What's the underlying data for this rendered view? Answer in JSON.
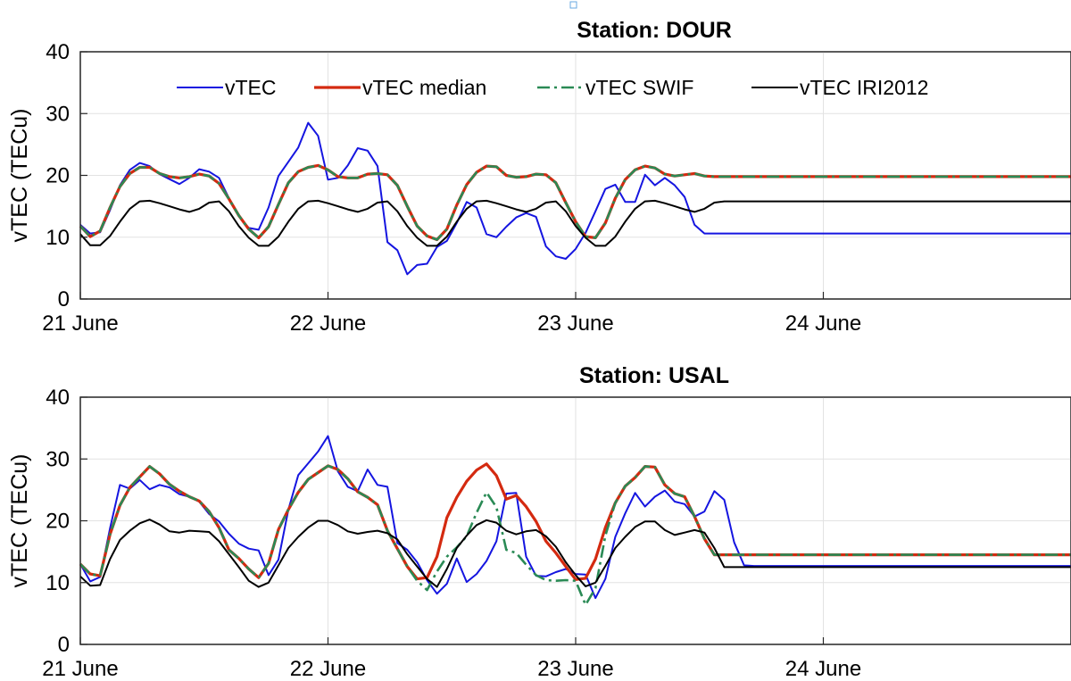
{
  "chart_data": [
    {
      "type": "line",
      "title": "Station: DOUR",
      "ylabel": "vTEC (TECu)",
      "xlabel": "",
      "xlim": [
        0,
        4
      ],
      "ylim": [
        0,
        40
      ],
      "yticks": [
        0,
        10,
        20,
        30,
        40
      ],
      "xticks": [
        0,
        1,
        2,
        3
      ],
      "xticklabels": [
        "21 June",
        "22 June",
        "23 June",
        "24 June"
      ],
      "grid": true,
      "legend": "top, horizontal",
      "x": [
        0,
        0.04,
        0.08,
        0.12,
        0.16,
        0.2,
        0.24,
        0.28,
        0.32,
        0.36,
        0.4,
        0.44,
        0.48,
        0.52,
        0.56,
        0.6,
        0.64,
        0.68,
        0.72,
        0.76,
        0.8,
        0.84,
        0.88,
        0.92,
        0.96,
        1,
        1.04,
        1.08,
        1.12,
        1.16,
        1.2,
        1.24,
        1.28,
        1.32,
        1.36,
        1.4,
        1.44,
        1.48,
        1.52,
        1.56,
        1.6,
        1.64,
        1.68,
        1.72,
        1.76,
        1.8,
        1.84,
        1.88,
        1.92,
        1.96,
        2,
        2.04,
        2.08,
        2.12,
        2.16,
        2.2,
        2.24,
        2.28,
        2.32,
        2.36,
        2.4,
        2.44,
        2.48,
        2.52,
        2.56,
        2.6,
        2.64,
        2.68,
        2.72,
        2.76,
        2.8,
        2.84,
        2.88,
        2.92,
        2.96,
        3,
        3.04,
        3.08,
        3.12,
        3.16,
        3.2,
        3.24,
        3.28,
        3.32,
        3.36,
        3.4,
        3.44,
        3.48,
        3.52,
        3.56,
        3.6,
        3.64,
        3.68,
        3.72,
        3.76,
        3.8,
        3.84,
        3.88,
        3.92,
        3.96,
        4
      ],
      "series": [
        {
          "name": "vTEC",
          "color": "#1515e0",
          "dash": "solid",
          "width": 2,
          "values": [
            12,
            10.6,
            10.8,
            14.4,
            18.4,
            20.9,
            22,
            21.5,
            20.2,
            19.4,
            18.6,
            19.6,
            21,
            20.6,
            19.6,
            16.3,
            13.4,
            11.5,
            11.2,
            14.8,
            19.9,
            22.2,
            24.5,
            28.5,
            26.4,
            19.3,
            19.6,
            21.6,
            24.4,
            24,
            21.5,
            9.2,
            7.9,
            4,
            5.5,
            5.7,
            8.4,
            9.4,
            12.3,
            15.7,
            14.8,
            10.5,
            10,
            11.7,
            13.2,
            13.9,
            13.3,
            8.5,
            6.9,
            6.5,
            8.1,
            10.7,
            14.2,
            17.8,
            18.5,
            15.7,
            15.7,
            20.1,
            18.4,
            19.6,
            18.4,
            16.5,
            12,
            10.6,
            10.6,
            10.6,
            10.6,
            10.6,
            10.6,
            10.6,
            10.6,
            10.6,
            10.6,
            10.6,
            10.6,
            10.6,
            10.6,
            10.6,
            10.6,
            10.6,
            10.6,
            10.6,
            10.6,
            10.6,
            10.6,
            10.6,
            10.6,
            10.6,
            10.6,
            10.6,
            10.6,
            10.6,
            10.6,
            10.6,
            10.6,
            10.6,
            10.6,
            10.6,
            10.6,
            10.6,
            10.6
          ]
        },
        {
          "name": "vTEC median",
          "color": "#d42a10",
          "dash": "solid",
          "width": 3.2,
          "values": [
            11.8,
            10.1,
            11,
            14.8,
            18.2,
            20.3,
            21.3,
            21.3,
            20.3,
            19.8,
            19.6,
            19.8,
            20.2,
            19.9,
            18.7,
            16.2,
            13.5,
            11.3,
            9.9,
            11.7,
            15.3,
            18.8,
            20.6,
            21.3,
            21.6,
            20.9,
            19.8,
            19.6,
            19.6,
            20.2,
            20.3,
            20.1,
            18.4,
            15,
            11.8,
            10.2,
            9.6,
            11.3,
            15.2,
            18.5,
            20.5,
            21.5,
            21.4,
            20,
            19.7,
            19.8,
            20.2,
            20.1,
            18.8,
            15.6,
            12.5,
            10.1,
            9.9,
            12.3,
            16.3,
            19.3,
            20.9,
            21.5,
            21.2,
            20.2,
            19.9,
            20.1,
            20.3,
            19.9,
            19.8,
            19.8,
            19.8,
            19.8,
            19.8,
            19.8,
            19.8,
            19.8,
            19.8,
            19.8,
            19.8,
            19.8,
            19.8,
            19.8,
            19.8,
            19.8,
            19.8,
            19.8,
            19.8,
            19.8,
            19.8,
            19.8,
            19.8,
            19.8,
            19.8,
            19.8,
            19.8,
            19.8,
            19.8,
            19.8,
            19.8,
            19.8,
            19.8,
            19.8,
            19.8,
            19.8,
            19.8
          ]
        },
        {
          "name": "vTEC SWIF",
          "color": "#2a8a55",
          "dash": "dashdot",
          "width": 2.6,
          "values": [
            11.8,
            10.1,
            11,
            14.8,
            18.2,
            20.3,
            21.3,
            21.3,
            20.3,
            19.8,
            19.6,
            19.8,
            20.2,
            19.9,
            18.7,
            16.2,
            13.5,
            11.3,
            9.9,
            11.7,
            15.3,
            18.8,
            20.6,
            21.3,
            21.6,
            20.9,
            19.8,
            19.6,
            19.6,
            20.2,
            20.3,
            20.1,
            18.4,
            15,
            11.8,
            10.2,
            9.6,
            11.3,
            15.2,
            18.5,
            20.5,
            21.5,
            21.4,
            20,
            19.7,
            19.8,
            20.2,
            20.1,
            18.8,
            15.6,
            12.5,
            10.1,
            9.9,
            12.3,
            16.3,
            19.3,
            20.9,
            21.5,
            21.2,
            20.2,
            19.9,
            20.1,
            20.3,
            19.9,
            19.8,
            19.8,
            19.8,
            19.8,
            19.8,
            19.8,
            19.8,
            19.8,
            19.8,
            19.8,
            19.8,
            19.8,
            19.8,
            19.8,
            19.8,
            19.8,
            19.8,
            19.8,
            19.8,
            19.8,
            19.8,
            19.8,
            19.8,
            19.8,
            19.8,
            19.8,
            19.8,
            19.8,
            19.8,
            19.8,
            19.8,
            19.8,
            19.8,
            19.8,
            19.8,
            19.8,
            19.8
          ]
        },
        {
          "name": "vTEC IRI2012",
          "color": "#000000",
          "dash": "solid",
          "width": 2,
          "values": [
            10.5,
            8.7,
            8.7,
            10.2,
            12.5,
            14.6,
            15.8,
            15.9,
            15.5,
            15,
            14.5,
            14.1,
            14.6,
            15.6,
            15.8,
            14.2,
            11.8,
            9.9,
            8.6,
            8.6,
            10.1,
            12.5,
            14.6,
            15.8,
            15.9,
            15.5,
            15,
            14.5,
            14.1,
            14.6,
            15.6,
            15.8,
            14.2,
            11.8,
            9.9,
            8.6,
            8.6,
            10.1,
            12.5,
            14.6,
            15.8,
            15.9,
            15.5,
            15,
            14.5,
            14.1,
            14.6,
            15.6,
            15.8,
            14.2,
            11.8,
            9.9,
            8.6,
            8.6,
            10.1,
            12.5,
            14.6,
            15.8,
            15.9,
            15.5,
            15,
            14.5,
            14.1,
            14.6,
            15.6,
            15.8,
            15.8,
            15.8,
            15.8,
            15.8,
            15.8,
            15.8,
            15.8,
            15.8,
            15.8,
            15.8,
            15.8,
            15.8,
            15.8,
            15.8,
            15.8,
            15.8,
            15.8,
            15.8,
            15.8,
            15.8,
            15.8,
            15.8,
            15.8,
            15.8,
            15.8,
            15.8,
            15.8,
            15.8,
            15.8,
            15.8,
            15.8,
            15.8,
            15.8,
            15.8,
            15.8
          ]
        }
      ]
    },
    {
      "type": "line",
      "title": "Station: USAL",
      "ylabel": "vTEC (TECu)",
      "xlabel": "",
      "xlim": [
        0,
        4
      ],
      "ylim": [
        0,
        40
      ],
      "yticks": [
        0,
        10,
        20,
        30,
        40
      ],
      "xticks": [
        0,
        1,
        2,
        3
      ],
      "xticklabels": [
        "21 June",
        "22 June",
        "23 June",
        "24 June"
      ],
      "grid": true,
      "x": [
        0,
        0.04,
        0.08,
        0.12,
        0.16,
        0.2,
        0.24,
        0.28,
        0.32,
        0.36,
        0.4,
        0.44,
        0.48,
        0.52,
        0.56,
        0.6,
        0.64,
        0.68,
        0.72,
        0.76,
        0.8,
        0.84,
        0.88,
        0.92,
        0.96,
        1,
        1.04,
        1.08,
        1.12,
        1.16,
        1.2,
        1.24,
        1.28,
        1.32,
        1.36,
        1.4,
        1.44,
        1.48,
        1.52,
        1.56,
        1.6,
        1.64,
        1.68,
        1.72,
        1.76,
        1.8,
        1.84,
        1.88,
        1.92,
        1.96,
        2,
        2.04,
        2.08,
        2.12,
        2.16,
        2.2,
        2.24,
        2.28,
        2.32,
        2.36,
        2.4,
        2.44,
        2.48,
        2.52,
        2.56,
        2.6,
        2.64,
        2.68,
        2.72,
        2.76,
        2.8,
        2.84,
        2.88,
        2.92,
        2.96,
        3,
        3.04,
        3.08,
        3.12,
        3.16,
        3.2,
        3.24,
        3.28,
        3.32,
        3.36,
        3.4,
        3.44,
        3.48,
        3.52,
        3.56,
        3.6,
        3.64,
        3.68,
        3.72,
        3.76,
        3.8,
        3.84,
        3.88,
        3.92,
        3.96,
        4
      ],
      "series": [
        {
          "name": "vTEC",
          "color": "#1515e0",
          "dash": "solid",
          "width": 2,
          "values": [
            13,
            10.2,
            10.9,
            18.8,
            25.8,
            25.2,
            26.6,
            25.1,
            25.8,
            25.4,
            24.3,
            23.9,
            23.1,
            21.1,
            19.9,
            17.9,
            16.3,
            15.5,
            15.2,
            11.2,
            13.7,
            21.8,
            27.4,
            29.3,
            31.2,
            33.7,
            28,
            25.5,
            24.8,
            28.3,
            25.8,
            25.5,
            16.4,
            15.3,
            13.3,
            10.4,
            8.2,
            9.8,
            13.9,
            10.1,
            11.4,
            13.5,
            16.7,
            24.4,
            24.5,
            14.2,
            11.1,
            11,
            11.7,
            12.2,
            11.4,
            11.3,
            7.5,
            10.6,
            17.4,
            21.2,
            24.5,
            22.3,
            23.9,
            24.9,
            23.1,
            22.7,
            20.7,
            21.5,
            24.8,
            23.4,
            16.5,
            12.8,
            12.7,
            12.7,
            12.7,
            12.7,
            12.7,
            12.7,
            12.7,
            12.7,
            12.7,
            12.7,
            12.7,
            12.7,
            12.7,
            12.7,
            12.7,
            12.7,
            12.7,
            12.7,
            12.7,
            12.7,
            12.7,
            12.7,
            12.7,
            12.7,
            12.7,
            12.7,
            12.7,
            12.7,
            12.7,
            12.7,
            12.7,
            12.7,
            12.7
          ]
        },
        {
          "name": "vTEC median",
          "color": "#d42a10",
          "dash": "solid",
          "width": 3.2,
          "values": [
            13,
            11.4,
            11.1,
            17.8,
            22.5,
            25.4,
            27.1,
            28.8,
            27.6,
            25.9,
            24.8,
            23.9,
            23.2,
            21.5,
            18.9,
            15.3,
            13.9,
            12.2,
            10.8,
            13.1,
            18.6,
            21.8,
            24.6,
            26.7,
            27.8,
            28.9,
            28.3,
            26.8,
            24.7,
            23.8,
            22.6,
            18.4,
            15.5,
            12.6,
            10.6,
            10.8,
            14.2,
            20.5,
            23.8,
            26.4,
            28.2,
            29.2,
            27.3,
            23.5,
            24.1,
            22.3,
            19.9,
            16.7,
            14.8,
            12.6,
            10.5,
            10.7,
            13.8,
            18.9,
            22.9,
            25.6,
            27,
            28.8,
            28.7,
            25.8,
            24.4,
            23.9,
            20.7,
            17.1,
            14.5,
            14.5,
            14.5,
            14.5,
            14.5,
            14.5,
            14.5,
            14.5,
            14.5,
            14.5,
            14.5,
            14.5,
            14.5,
            14.5,
            14.5,
            14.5,
            14.5,
            14.5,
            14.5,
            14.5,
            14.5,
            14.5,
            14.5,
            14.5,
            14.5,
            14.5,
            14.5,
            14.5,
            14.5,
            14.5,
            14.5,
            14.5,
            14.5,
            14.5,
            14.5,
            14.5,
            14.5
          ]
        },
        {
          "name": "vTEC SWIF",
          "color": "#2a8a55",
          "dash": "dashdot",
          "width": 2.6,
          "values": [
            13,
            11.4,
            11.1,
            17.8,
            22.5,
            25.4,
            27.1,
            28.8,
            27.6,
            25.9,
            24.8,
            23.9,
            23.2,
            21.5,
            18.9,
            15.3,
            13.9,
            12.2,
            10.8,
            13.1,
            18.6,
            21.8,
            24.6,
            26.7,
            27.8,
            28.9,
            28.3,
            26.8,
            24.7,
            23.8,
            22.6,
            18.4,
            15.5,
            12.6,
            10.3,
            8.8,
            11.8,
            14.2,
            15.7,
            17.5,
            21.3,
            24.6,
            22.2,
            15.3,
            14.8,
            12.9,
            11.2,
            10.4,
            10.3,
            10.4,
            10.3,
            6.4,
            9.1,
            17.6,
            22.9,
            25.6,
            27,
            28.8,
            28.7,
            25.8,
            24.4,
            23.9,
            20.7,
            17.1,
            14.5,
            14.5,
            14.5,
            14.5,
            14.5,
            14.5,
            14.5,
            14.5,
            14.5,
            14.5,
            14.5,
            14.5,
            14.5,
            14.5,
            14.5,
            14.5,
            14.5,
            14.5,
            14.5,
            14.5,
            14.5,
            14.5,
            14.5,
            14.5,
            14.5,
            14.5,
            14.5,
            14.5,
            14.5,
            14.5,
            14.5,
            14.5,
            14.5,
            14.5,
            14.5,
            14.5,
            14.5
          ]
        },
        {
          "name": "vTEC IRI2012",
          "color": "#000000",
          "dash": "solid",
          "width": 2,
          "values": [
            11,
            9.5,
            9.6,
            13.8,
            16.9,
            18.4,
            19.6,
            20.2,
            19.4,
            18.3,
            18.1,
            18.4,
            18.3,
            18.2,
            16.7,
            14.6,
            12.5,
            10.3,
            9.3,
            10,
            12.8,
            15.6,
            17.4,
            18.9,
            20,
            20,
            19.3,
            18.3,
            17.9,
            18.2,
            18.4,
            18,
            17,
            14.6,
            12.6,
            10.6,
            9.3,
            12.2,
            15.6,
            17.6,
            19.3,
            20.1,
            19.7,
            18.4,
            17.8,
            18.3,
            18.5,
            17.5,
            15.8,
            13.3,
            11.2,
            9.4,
            10,
            12.7,
            15.6,
            17.4,
            19,
            19.9,
            19.9,
            18.5,
            17.7,
            18.1,
            18.5,
            18.1,
            15.6,
            12.5,
            12.5,
            12.5,
            12.5,
            12.5,
            12.5,
            12.5,
            12.5,
            12.5,
            12.5,
            12.5,
            12.5,
            12.5,
            12.5,
            12.5,
            12.5,
            12.5,
            12.5,
            12.5,
            12.5,
            12.5,
            12.5,
            12.5,
            12.5,
            12.5,
            12.5,
            12.5,
            12.5,
            12.5,
            12.5,
            12.5,
            12.5,
            12.5,
            12.5,
            12.5,
            12.5
          ]
        }
      ]
    }
  ]
}
